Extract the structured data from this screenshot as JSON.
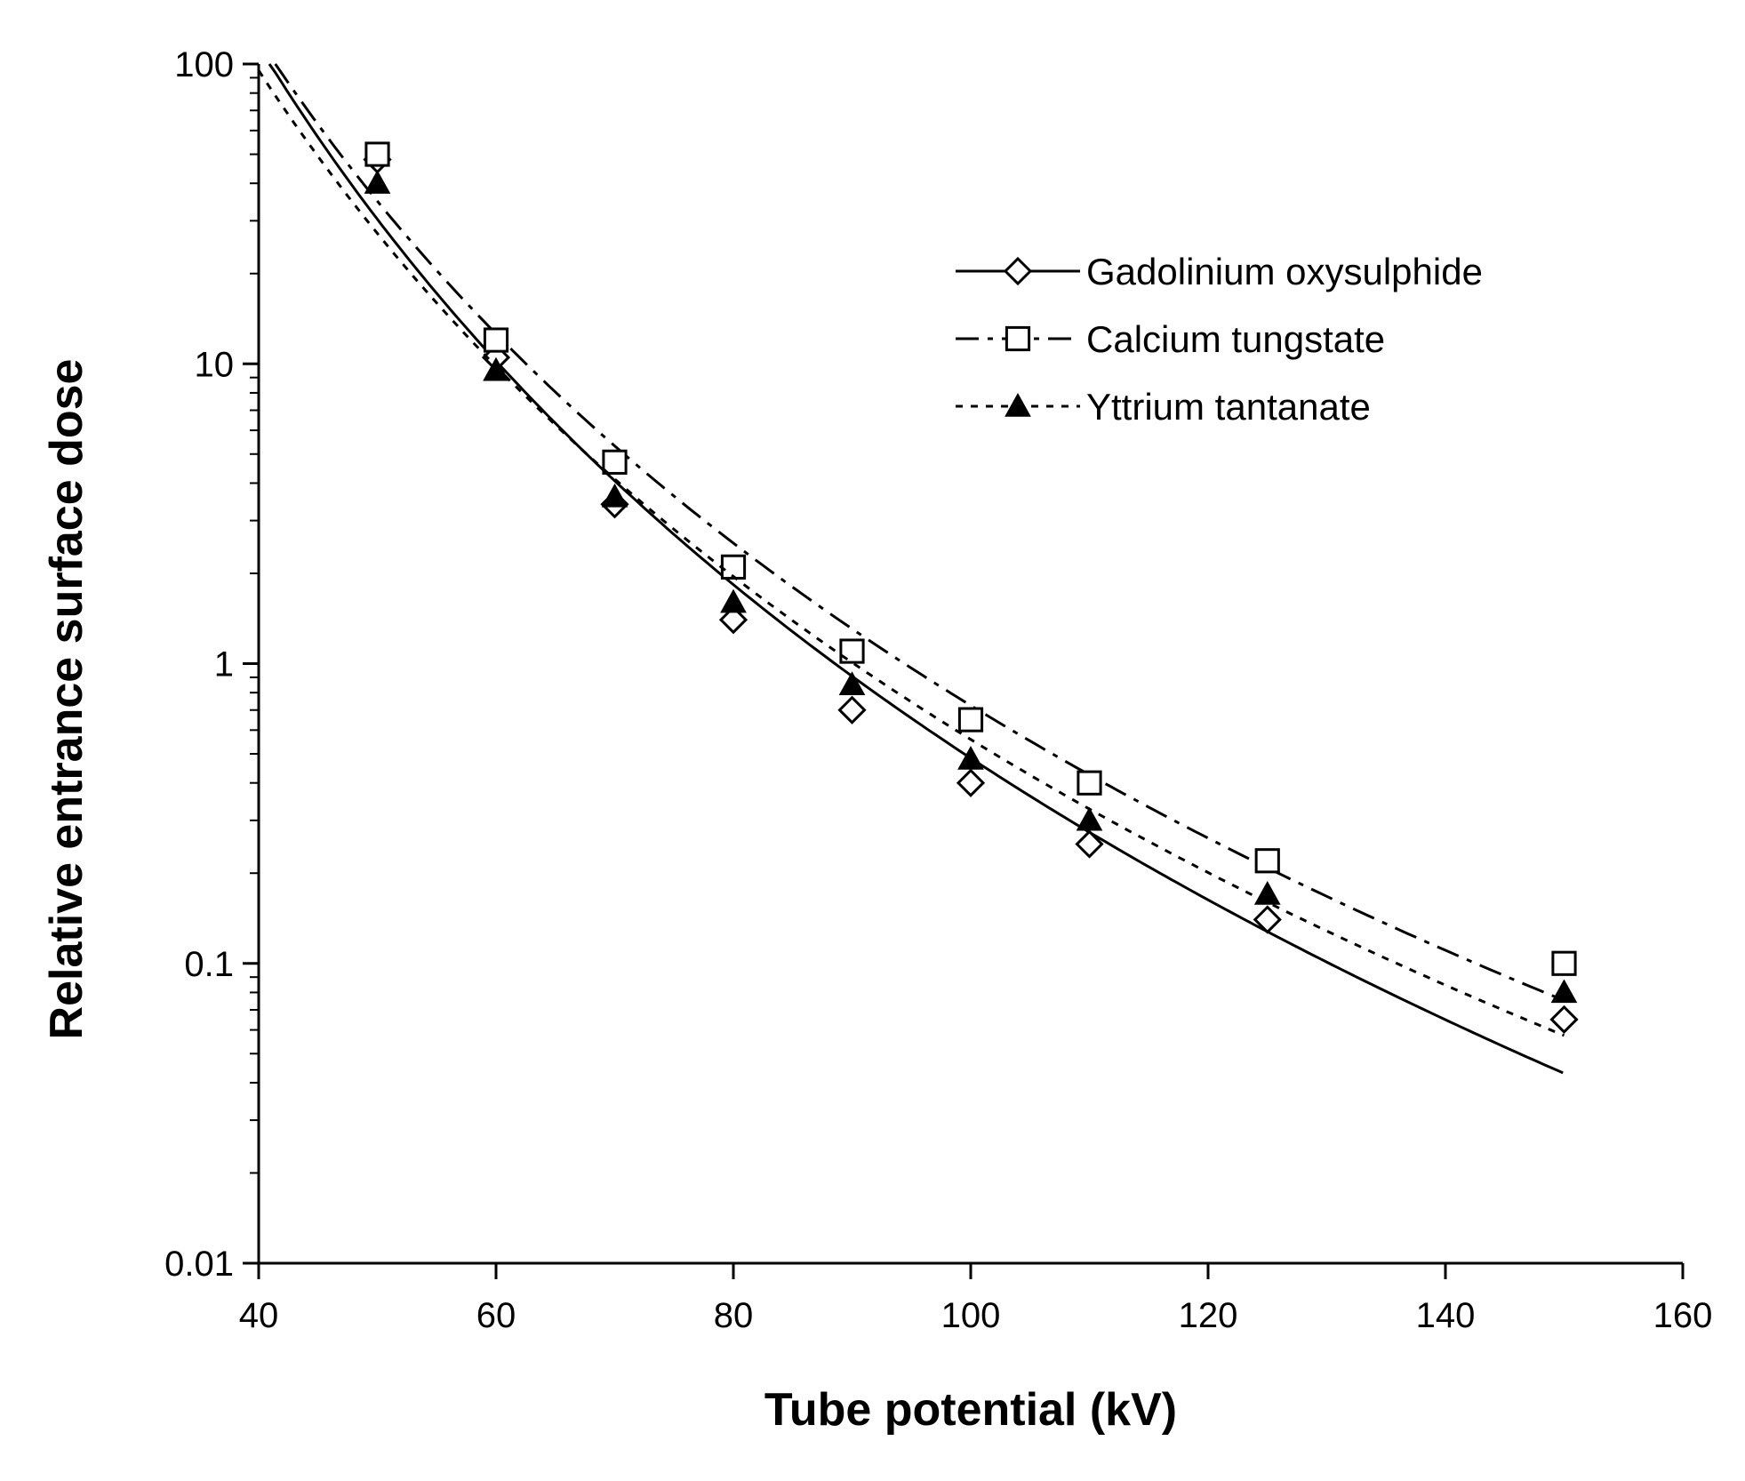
{
  "chart_data": {
    "type": "line",
    "title": "",
    "xlabel": "Tube potential (kV)",
    "ylabel": "Relative entrance surface dose",
    "xlim": [
      40,
      160
    ],
    "ylim": [
      0.01,
      100
    ],
    "yscale": "log",
    "xticks": [
      "40",
      "60",
      "80",
      "100",
      "120",
      "140",
      "160"
    ],
    "yticks": [
      "0.01",
      "0.1",
      "1",
      "10",
      "100"
    ],
    "grid": false,
    "legend_position": "top-right",
    "series": [
      {
        "name": "Gadolinium oxysulphide",
        "marker": "diamond-open",
        "line": "solid",
        "x": [
          50,
          60,
          70,
          80,
          90,
          100,
          110,
          125,
          150
        ],
        "y": [
          48,
          10.5,
          3.4,
          1.4,
          0.7,
          0.4,
          0.25,
          0.14,
          0.065
        ]
      },
      {
        "name": "Calcium tungstate",
        "marker": "square-open",
        "line": "dash-dot",
        "x": [
          50,
          60,
          70,
          80,
          90,
          100,
          110,
          125,
          150
        ],
        "y": [
          50,
          12,
          4.7,
          2.1,
          1.1,
          0.65,
          0.4,
          0.22,
          0.1
        ]
      },
      {
        "name": "Yttrium tantanate",
        "marker": "triangle-filled",
        "line": "dotted",
        "x": [
          50,
          60,
          70,
          80,
          90,
          100,
          110,
          125,
          150
        ],
        "y": [
          40,
          9.5,
          3.6,
          1.6,
          0.85,
          0.48,
          0.3,
          0.17,
          0.08
        ]
      }
    ]
  }
}
